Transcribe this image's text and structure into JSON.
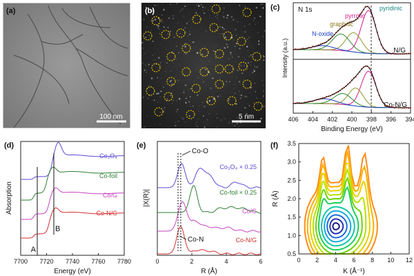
{
  "panels": {
    "a": {
      "label": "(a)",
      "scalebar": "100 nm"
    },
    "b": {
      "label": "(b)",
      "scalebar": "5 nm"
    },
    "c": {
      "label": "(c)",
      "title": "N 1s",
      "peaks": [
        "pyridinic",
        "pyrrolic",
        "graphitic",
        "N-oxide"
      ],
      "sample_top": "N/G",
      "sample_bottom": "Co-N/G",
      "ylabel": "Intensity (a.u.)",
      "xlabel": "Binding Energy (eV)",
      "xticks": [
        "406",
        "404",
        "402",
        "400",
        "398",
        "396",
        "394"
      ],
      "dashed_line_at": 398.3,
      "peak_colors": {
        "pyridinic": "#d71a8c",
        "pyrrolic": "#8a9a2a",
        "graphitic": "#2a8a2a",
        "N-oxide": "#1f3fbf"
      }
    },
    "d": {
      "label": "(d)",
      "series": [
        "Co3O4",
        "Co-foil",
        "Co/G",
        "Co-N/G"
      ],
      "series_display": [
        "Co₃O₄",
        "Co-foil",
        "Co/G",
        "Co-N/G"
      ],
      "series_colors": [
        "#5a4ad1",
        "#2e7d32",
        "#c742c1",
        "#d32f2f"
      ],
      "marker_A": "A",
      "marker_B": "B",
      "ylabel": "Absorption",
      "xlabel": "Energy (eV)",
      "xticks": [
        "7700",
        "7720",
        "7740",
        "7760",
        "7780"
      ]
    },
    "e": {
      "label": "(e)",
      "series_display": [
        "Co₃O₄ × 0.25",
        "Co-foil × 0.25",
        "Co/G",
        "Co-N/G"
      ],
      "series_colors": [
        "#5a4ad1",
        "#2e7d32",
        "#c742c1",
        "#d32f2f"
      ],
      "annot_top": "Co-O",
      "annot_bottom": "Co-N",
      "ylabel": "|X(R)|",
      "xlabel": "R (Å)",
      "xticks": [
        "0",
        "2",
        "4",
        "6"
      ]
    },
    "f": {
      "label": "(f)",
      "ylabel": "R (Å)",
      "xlabel": "K (Å⁻¹)",
      "xticks": [
        "0",
        "2",
        "4",
        "6",
        "8",
        "10",
        "12"
      ],
      "yticks": [
        "0.5",
        "1.0",
        "1.5",
        "2.0",
        "2.5",
        "3.0",
        "3.5"
      ]
    }
  }
}
